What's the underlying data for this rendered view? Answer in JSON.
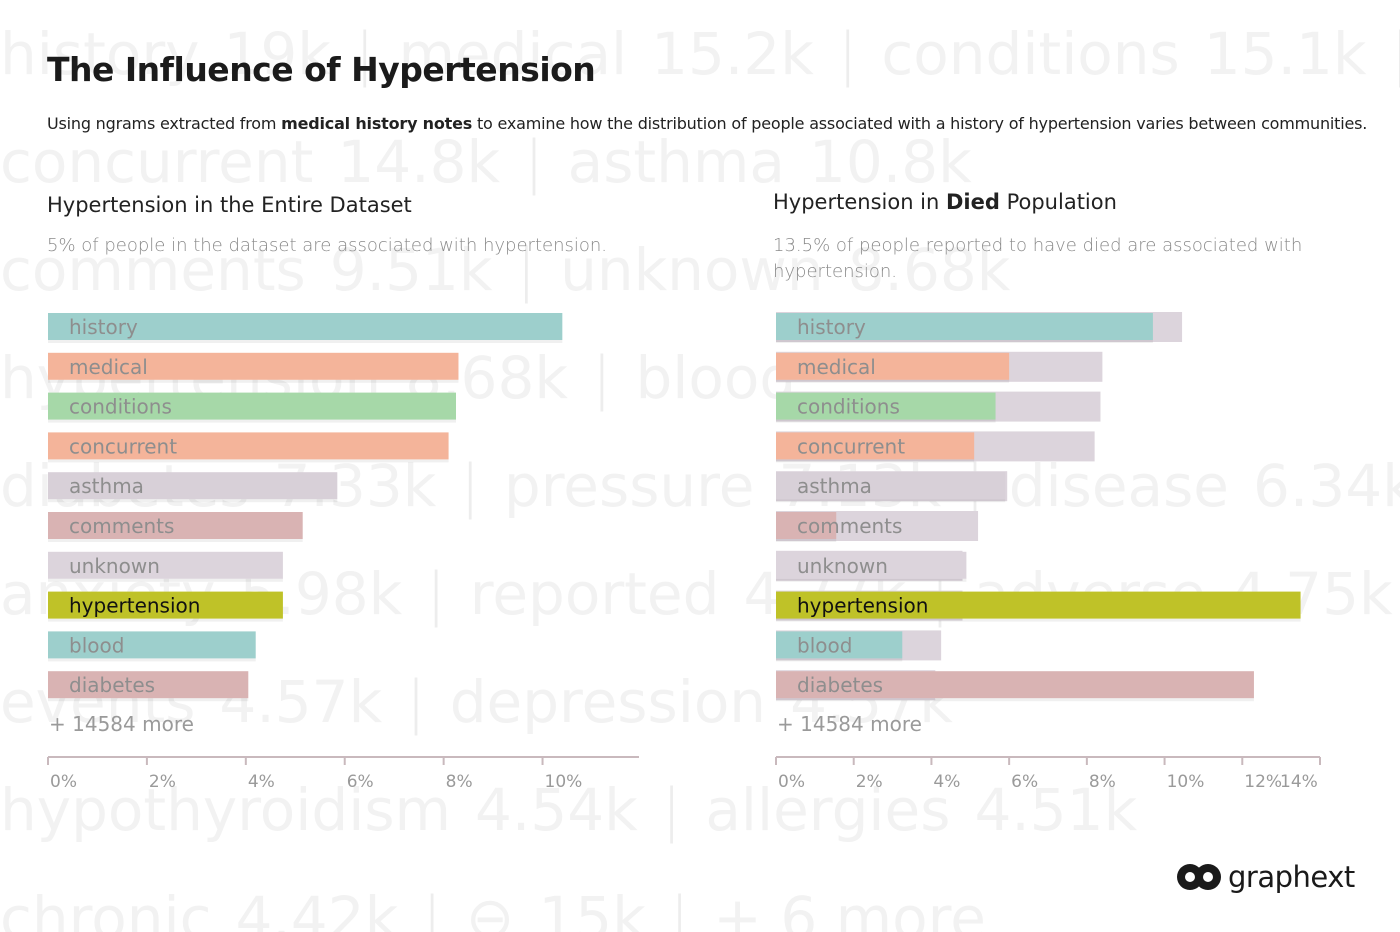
{
  "title": "The Influence of Hypertension",
  "subtitle_pre": "Using ngrams extracted from ",
  "subtitle_bold": "medical history notes",
  "subtitle_post": " to examine how the distribution of people associated with a history of hypertension varies between communities.",
  "background_words": [
    [
      "history",
      "19k",
      "|",
      "medical",
      "15.2k",
      "|",
      "conditions",
      "15.1k",
      "|"
    ],
    [
      "concurrent",
      "14.8k",
      "|",
      "asthma",
      "10.8k"
    ],
    [
      "comments",
      "9.51k",
      "|",
      "unknown",
      "8.68k"
    ],
    [
      "hypertension",
      "8.68k",
      "|",
      "blood"
    ],
    [
      "diabetes",
      "7.33k",
      "|",
      "pressure",
      "7.13k",
      "|",
      "disease",
      "6.34k",
      "|"
    ],
    [
      "anxiety",
      "5.98k",
      "|",
      "reported",
      "4.77k",
      "|",
      "adverse",
      "4.75k",
      "|"
    ],
    [
      "events",
      "4.57k",
      "|",
      "depression",
      "4.57k"
    ],
    [
      "hypothyroidism",
      "4.54k",
      "|",
      "allergies",
      "4.51k"
    ],
    [
      "chronic",
      "4.42k",
      "|",
      "⊖",
      "15k",
      "|",
      "+ 6 more"
    ]
  ],
  "logo_text": "graphext",
  "colors": {
    "history": "#9dcfcc",
    "medical": "#f4b49a",
    "conditions": "#a6d8a8",
    "concurrent": "#f4b49a",
    "asthma": "#d8d0d8",
    "comments": "#d9b3b3",
    "unknown": "#dcd4dc",
    "hypertension": "#bfc228",
    "blood": "#9dcfcc",
    "diabetes": "#d9b3b3",
    "ghost": "#dcd4dc",
    "axis": "#c9b9bd"
  },
  "chart_data": [
    {
      "type": "bar",
      "orientation": "horizontal",
      "title": "Hypertension in the Entire Dataset",
      "title_bold": "",
      "title_post": "",
      "description": "5% of people in the dataset are associated with hypertension.",
      "categories": [
        "history",
        "medical",
        "conditions",
        "concurrent",
        "asthma",
        "comments",
        "unknown",
        "hypertension",
        "blood",
        "diabetes"
      ],
      "series": [
        {
          "values": [
            10.4,
            8.3,
            8.25,
            8.1,
            5.85,
            5.15,
            4.75,
            4.75,
            4.2,
            4.05
          ]
        }
      ],
      "highlight": "hypertension",
      "more_label": "+ 14584 more",
      "xlim": [
        0,
        11
      ],
      "xticks": [
        0,
        2,
        4,
        6,
        8,
        10
      ],
      "tick_labels": [
        "0%",
        "2%",
        "4%",
        "6%",
        "8%",
        "10%"
      ]
    },
    {
      "type": "bar",
      "orientation": "horizontal",
      "title": "Hypertension in ",
      "title_bold": "Died",
      "title_post": " Population",
      "description": "13.5% of people reported to have died are associated with hypertension.",
      "categories": [
        "history",
        "medical",
        "conditions",
        "concurrent",
        "asthma",
        "comments",
        "unknown",
        "hypertension",
        "blood",
        "diabetes"
      ],
      "series": [
        {
          "name": "Died",
          "values": [
            9.7,
            6.0,
            5.65,
            5.1,
            5.9,
            1.55,
            4.9,
            13.5,
            3.25,
            12.3
          ]
        },
        {
          "name": "Entire Dataset",
          "values": [
            10.45,
            8.4,
            8.35,
            8.2,
            5.95,
            5.2,
            4.8,
            4.8,
            4.25,
            4.1
          ]
        }
      ],
      "highlight": "hypertension",
      "more_label": "+ 14584 more",
      "xlim": [
        0,
        14
      ],
      "xticks": [
        0,
        2,
        4,
        6,
        8,
        10,
        12,
        14
      ],
      "tick_labels": [
        "0%",
        "2%",
        "4%",
        "6%",
        "8%",
        "10%",
        "12%",
        "14%"
      ]
    }
  ]
}
